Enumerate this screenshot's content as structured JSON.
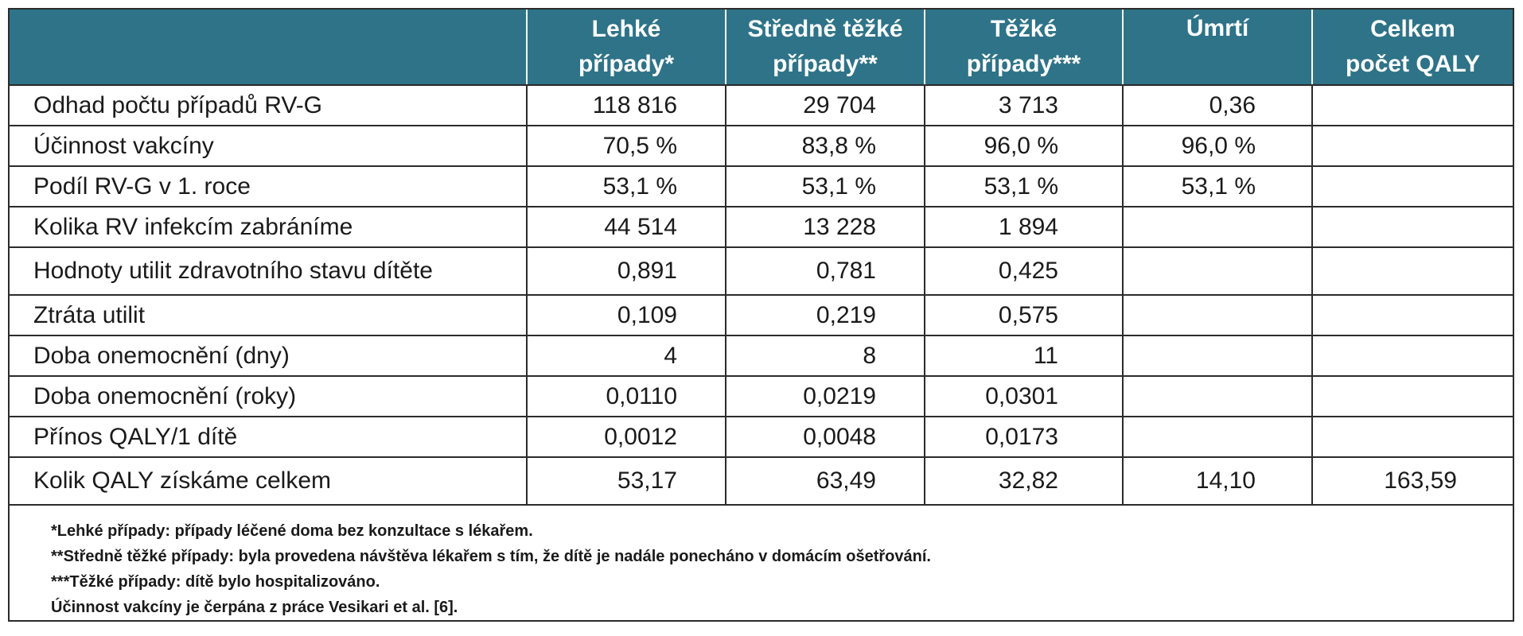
{
  "table": {
    "headers": [
      {
        "line1": "",
        "line2": ""
      },
      {
        "line1": "Lehké",
        "line2": "případy*"
      },
      {
        "line1": "Středně těžké",
        "line2": "případy**"
      },
      {
        "line1": "Těžké",
        "line2": "případy***"
      },
      {
        "line1": "Úmrtí",
        "line2": ""
      },
      {
        "line1": "Celkem",
        "line2": "počet QALY"
      }
    ],
    "rows": [
      {
        "label": "Odhad počtu případů RV-G",
        "lehke": "118 816",
        "stredne": "29 704",
        "tezke": "3 713",
        "umrti": "0,36",
        "celkem": ""
      },
      {
        "label": "Účinnost vakcíny",
        "lehke": "70,5 %",
        "stredne": "83,8 %",
        "tezke": "96,0 %",
        "umrti": "96,0 %",
        "celkem": ""
      },
      {
        "label": "Podíl RV-G v 1. roce",
        "lehke": "53,1 %",
        "stredne": "53,1 %",
        "tezke": "53,1 %",
        "umrti": "53,1 %",
        "celkem": ""
      },
      {
        "label": "Kolika RV infekcím zabráníme",
        "lehke": "44 514",
        "stredne": "13 228",
        "tezke": "1 894",
        "umrti": "",
        "celkem": ""
      },
      {
        "label": "Hodnoty utilit zdravotního stavu dítěte",
        "lehke": "0,891",
        "stredne": "0,781",
        "tezke": "0,425",
        "umrti": "",
        "celkem": ""
      },
      {
        "label": "Ztráta utilit",
        "lehke": "0,109",
        "stredne": "0,219",
        "tezke": "0,575",
        "umrti": "",
        "celkem": ""
      },
      {
        "label": "Doba onemocnění (dny)",
        "lehke": "4",
        "stredne": "8",
        "tezke": "11",
        "umrti": "",
        "celkem": ""
      },
      {
        "label": "Doba onemocnění (roky)",
        "lehke": "0,0110",
        "stredne": "0,0219",
        "tezke": "0,0301",
        "umrti": "",
        "celkem": ""
      },
      {
        "label": "Přínos QALY/1 dítě",
        "lehke": "0,0012",
        "stredne": "0,0048",
        "tezke": "0,0173",
        "umrti": "",
        "celkem": ""
      },
      {
        "label": "Kolik QALY získáme celkem",
        "lehke": "53,17",
        "stredne": "63,49",
        "tezke": "32,82",
        "umrti": "14,10",
        "celkem": "163,59"
      }
    ]
  },
  "footnotes": [
    "*Lehké případy: případy léčené doma bez konzultace s lékařem.",
    "**Středně těžké případy: byla provedena návštěva lékařem s tím, že dítě je nadále ponecháno v domácím ošetřování.",
    "***Těžké případy: dítě bylo hospitalizováno.",
    "Účinnost vakcíny je čerpána z práce Vesikari et al. [6]."
  ],
  "colors": {
    "header_bg": "#2e7388",
    "header_text": "#ffffff",
    "grid": "#2b2b2b"
  }
}
